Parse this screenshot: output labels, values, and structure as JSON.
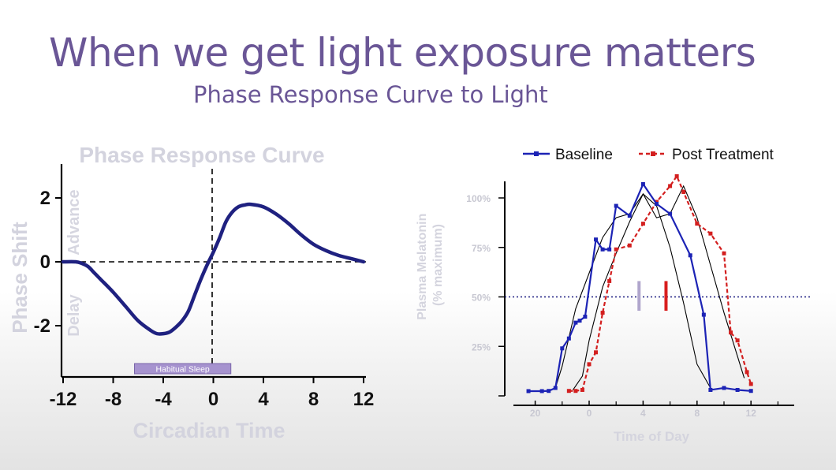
{
  "slide": {
    "title": "When we get light exposure matters",
    "subtitle": "Phase Response Curve to Light"
  },
  "chart_data": [
    {
      "type": "line",
      "title": "Phase Response Curve",
      "xlabel": "Circadian Time",
      "ylabel": "Phase Shift",
      "xlim": [
        -12,
        12
      ],
      "ylim": [
        -3.4,
        2.8
      ],
      "xticks": [
        "-12",
        "-8",
        "-4",
        "0",
        "4",
        "8",
        "12"
      ],
      "yticks": [
        "2",
        "0",
        "-2"
      ],
      "region_labels": {
        "advance": "Advance",
        "delay": "Delay"
      },
      "band_label": "Habitual Sleep",
      "band_range": [
        -6.3,
        1.4
      ],
      "reference_lines": {
        "horizontal_y": 0,
        "vertical_x": 0
      },
      "color": "#1f2180",
      "series": [
        {
          "x": [
            -12,
            -11,
            -10.5,
            -10,
            -9.5,
            -9,
            -8,
            -7,
            -6,
            -5,
            -4.5,
            -4,
            -3.5,
            -3,
            -2.5,
            -2,
            -1.5,
            -1,
            -0.5,
            0,
            0.5,
            1,
            1.5,
            2,
            2.5,
            3,
            4,
            5,
            6,
            7,
            8,
            9,
            10,
            11,
            12
          ],
          "y": [
            0,
            0,
            -0.05,
            -0.15,
            -0.35,
            -0.55,
            -0.95,
            -1.4,
            -1.85,
            -2.15,
            -2.25,
            -2.25,
            -2.2,
            -2.05,
            -1.85,
            -1.55,
            -1.05,
            -0.55,
            -0.1,
            0.3,
            0.75,
            1.25,
            1.55,
            1.72,
            1.78,
            1.8,
            1.72,
            1.5,
            1.2,
            0.85,
            0.55,
            0.35,
            0.2,
            0.1,
            0
          ]
        }
      ]
    },
    {
      "type": "line",
      "xlabel": "Time of Day",
      "ylabel": "Plasma Melatonin (% maximum)",
      "x_ticks": [
        "20",
        "0",
        "4",
        "8",
        "12"
      ],
      "y_ticks": [
        "25%",
        "50%",
        "75%",
        "100%"
      ],
      "xlim": [
        18,
        15
      ],
      "ylim": [
        0,
        110
      ],
      "reference_line_y": 50,
      "markers": [
        {
          "x": 3.7,
          "color": "#b0a6cc"
        },
        {
          "x": 5.7,
          "color": "#d81e1e"
        }
      ],
      "series": [
        {
          "name": "Baseline",
          "color": "#1c23b5",
          "style": "solid",
          "x": [
            19.5,
            20.5,
            21,
            21.5,
            22,
            22.5,
            23,
            23.3,
            23.7,
            0.5,
            1,
            1.5,
            2,
            3,
            4,
            5,
            6,
            7.5,
            8.5,
            9,
            10,
            11,
            12
          ],
          "y": [
            2.4,
            2.4,
            2.5,
            4,
            24,
            29,
            37,
            38,
            40,
            79,
            74,
            74,
            96,
            91,
            107,
            97,
            92,
            71,
            41,
            3,
            4,
            3,
            2.5
          ]
        },
        {
          "name": "Post Treatment",
          "color": "#d31f1f",
          "style": "dashed",
          "x": [
            22.5,
            23,
            23.5,
            0,
            0.5,
            1,
            1.5,
            2,
            3,
            4,
            5,
            6,
            6.5,
            7,
            8,
            9,
            10,
            10.5,
            11,
            11.7,
            12
          ],
          "y": [
            2.5,
            2.5,
            3,
            16,
            22,
            42,
            58,
            74,
            76,
            87,
            98,
            106,
            111,
            103,
            87,
            82,
            72,
            32,
            28,
            12,
            6
          ]
        },
        {
          "color": "#000000",
          "style": "thin",
          "x": [
            22.8,
            23.5,
            0,
            1,
            2,
            3,
            4,
            5,
            6,
            7,
            8,
            9,
            10,
            11,
            11.5
          ],
          "y": [
            3,
            10,
            28,
            55,
            72,
            88,
            102,
            90,
            92,
            106,
            90,
            66,
            42,
            20,
            9
          ]
        },
        {
          "color": "#000000",
          "style": "thin",
          "x": [
            21.5,
            22,
            23,
            0,
            1,
            2,
            3,
            4,
            5,
            6,
            7,
            8,
            9
          ],
          "y": [
            4,
            15,
            44,
            62,
            80,
            90,
            92,
            102,
            96,
            75,
            47,
            16,
            4
          ]
        }
      ]
    }
  ]
}
